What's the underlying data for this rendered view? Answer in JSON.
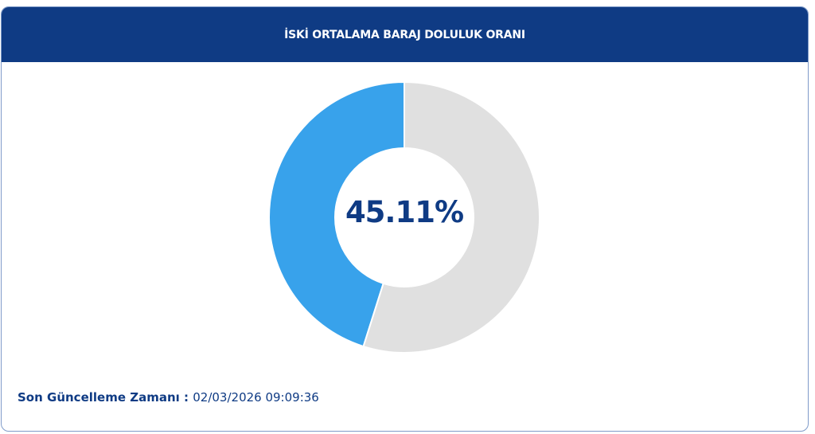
{
  "header": {
    "title": "İSKİ ORTALAMA BARAJ DOLULUK ORANI"
  },
  "chart_data": {
    "type": "pie",
    "variant": "donut",
    "center_label": "45.11%",
    "slices": [
      {
        "value": 45.11,
        "color": "#38a2eb"
      },
      {
        "value": 54.89,
        "color": "#e0e0e0"
      }
    ],
    "direction": "counterclockwise-from-top"
  },
  "footer": {
    "label": "Son Güncelleme Zamanı",
    "separator": " : ",
    "timestamp": "02/03/2026 09:09:36"
  },
  "colors": {
    "header_bg": "#0f3b84",
    "accent": "#38a2eb",
    "empty": "#e0e0e0"
  }
}
